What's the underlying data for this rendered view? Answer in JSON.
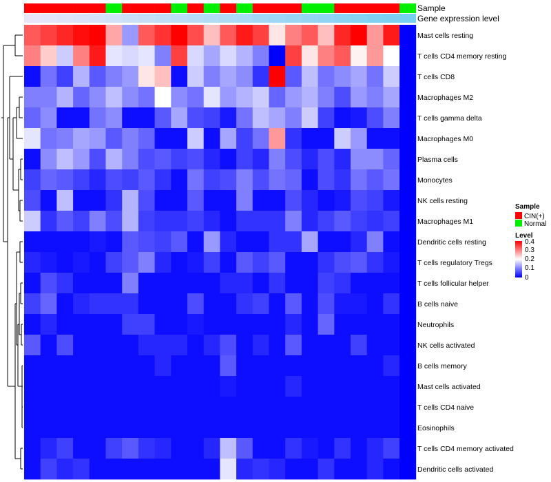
{
  "chart_data": {
    "type": "heatmap",
    "annotation_labels": [
      "Sample",
      "Gene expression level"
    ],
    "sample_groups": [
      "CIN(+)",
      "CIN(+)",
      "CIN(+)",
      "CIN(+)",
      "CIN(+)",
      "Normal",
      "CIN(+)",
      "CIN(+)",
      "CIN(+)",
      "Normal",
      "CIN(+)",
      "Normal",
      "CIN(+)",
      "Normal",
      "CIN(+)",
      "CIN(+)",
      "CIN(+)",
      "Normal",
      "Normal",
      "CIN(+)",
      "CIN(+)",
      "CIN(+)",
      "CIN(+)",
      "Normal"
    ],
    "gene_expression_level": [
      0.02,
      0.06,
      0.1,
      0.14,
      0.18,
      0.22,
      0.26,
      0.3,
      0.34,
      0.38,
      0.42,
      0.46,
      0.5,
      0.54,
      0.58,
      0.62,
      0.66,
      0.7,
      0.74,
      0.78,
      0.82,
      0.86,
      0.9,
      0.94
    ],
    "rows": [
      "Mast cells resting",
      "T cells CD4 memory resting",
      "T cells CD8",
      "Macrophages M2",
      "T cells gamma delta",
      "Macrophages M0",
      "Plasma cells",
      "Monocytes",
      "NK cells resting",
      "Macrophages M1",
      "Dendritic cells resting",
      "T cells regulatory  Tregs",
      "T cells follicular helper",
      "B cells naive",
      "Neutrophils",
      "NK cells activated",
      "B cells memory",
      "Mast cells activated",
      "T cells CD4 naive",
      "Eosinophils",
      "T cells CD4 memory activated",
      "Dendritic cells activated"
    ],
    "values": [
      [
        0.33,
        0.35,
        0.37,
        0.39,
        0.4,
        0.27,
        0.12,
        0.33,
        0.36,
        0.4,
        0.34,
        0.25,
        0.33,
        0.38,
        0.35,
        0.22,
        0.3,
        0.33,
        0.25,
        0.37,
        0.4,
        0.28,
        0.38,
        0.0
      ],
      [
        0.3,
        0.24,
        0.16,
        0.3,
        0.38,
        0.18,
        0.17,
        0.18,
        0.1,
        0.35,
        0.17,
        0.13,
        0.17,
        0.14,
        0.1,
        0.0,
        0.35,
        0.22,
        0.3,
        0.33,
        0.21,
        0.28,
        0.2,
        0.0
      ],
      [
        0.01,
        0.09,
        0.05,
        0.14,
        0.07,
        0.1,
        0.12,
        0.22,
        0.25,
        0.01,
        0.16,
        0.1,
        0.13,
        0.11,
        0.04,
        0.4,
        0.07,
        0.15,
        0.09,
        0.11,
        0.13,
        0.09,
        0.16,
        0.0
      ],
      [
        0.1,
        0.1,
        0.14,
        0.08,
        0.11,
        0.15,
        0.11,
        0.09,
        0.2,
        0.11,
        0.09,
        0.18,
        0.12,
        0.14,
        0.16,
        0.08,
        0.12,
        0.14,
        0.1,
        0.06,
        0.12,
        0.1,
        0.13,
        0.0
      ],
      [
        0.08,
        0.11,
        0.01,
        0.01,
        0.09,
        0.11,
        0.01,
        0.01,
        0.07,
        0.13,
        0.06,
        0.05,
        0.02,
        0.09,
        0.15,
        0.13,
        0.1,
        0.16,
        0.05,
        0.01,
        0.02,
        0.06,
        0.1,
        0.0
      ],
      [
        0.18,
        0.09,
        0.1,
        0.13,
        0.12,
        0.07,
        0.1,
        0.08,
        0.01,
        0.01,
        0.16,
        0.01,
        0.13,
        0.05,
        0.09,
        0.28,
        0.04,
        0.01,
        0.01,
        0.16,
        0.12,
        0.01,
        0.01,
        0.0
      ],
      [
        0.01,
        0.11,
        0.15,
        0.12,
        0.06,
        0.14,
        0.1,
        0.06,
        0.07,
        0.05,
        0.06,
        0.03,
        0.01,
        0.05,
        0.03,
        0.1,
        0.06,
        0.03,
        0.06,
        0.03,
        0.11,
        0.11,
        0.08,
        0.0
      ],
      [
        0.05,
        0.08,
        0.07,
        0.05,
        0.03,
        0.06,
        0.05,
        0.07,
        0.04,
        0.01,
        0.09,
        0.05,
        0.06,
        0.1,
        0.06,
        0.09,
        0.08,
        0.01,
        0.06,
        0.04,
        0.09,
        0.07,
        0.09,
        0.0
      ],
      [
        0.06,
        0.01,
        0.15,
        0.01,
        0.01,
        0.04,
        0.14,
        0.06,
        0.01,
        0.01,
        0.07,
        0.01,
        0.01,
        0.1,
        0.01,
        0.01,
        0.06,
        0.03,
        0.01,
        0.02,
        0.06,
        0.05,
        0.02,
        0.0
      ],
      [
        0.16,
        0.04,
        0.07,
        0.05,
        0.1,
        0.06,
        0.14,
        0.05,
        0.04,
        0.04,
        0.05,
        0.03,
        0.01,
        0.04,
        0.04,
        0.04,
        0.1,
        0.03,
        0.05,
        0.07,
        0.05,
        0.04,
        0.05,
        0.0
      ],
      [
        0.01,
        0.01,
        0.01,
        0.01,
        0.02,
        0.01,
        0.07,
        0.06,
        0.05,
        0.07,
        0.01,
        0.12,
        0.03,
        0.01,
        0.01,
        0.04,
        0.04,
        0.13,
        0.01,
        0.01,
        0.03,
        0.1,
        0.01,
        0.0
      ],
      [
        0.03,
        0.02,
        0.01,
        0.02,
        0.01,
        0.05,
        0.07,
        0.1,
        0.03,
        0.01,
        0.02,
        0.05,
        0.01,
        0.07,
        0.05,
        0.07,
        0.01,
        0.01,
        0.04,
        0.06,
        0.07,
        0.04,
        0.02,
        0.0
      ],
      [
        0.01,
        0.06,
        0.04,
        0.01,
        0.01,
        0.01,
        0.1,
        0.01,
        0.01,
        0.01,
        0.01,
        0.01,
        0.03,
        0.03,
        0.01,
        0.04,
        0.01,
        0.01,
        0.05,
        0.04,
        0.01,
        0.01,
        0.01,
        0.0
      ],
      [
        0.05,
        0.08,
        0.01,
        0.03,
        0.04,
        0.04,
        0.04,
        0.01,
        0.01,
        0.01,
        0.06,
        0.01,
        0.01,
        0.04,
        0.05,
        0.01,
        0.07,
        0.01,
        0.06,
        0.02,
        0.02,
        0.01,
        0.04,
        0.0
      ],
      [
        0.01,
        0.03,
        0.01,
        0.01,
        0.01,
        0.01,
        0.05,
        0.05,
        0.01,
        0.01,
        0.02,
        0.01,
        0.01,
        0.01,
        0.01,
        0.01,
        0.03,
        0.01,
        0.08,
        0.01,
        0.01,
        0.01,
        0.01,
        0.0
      ],
      [
        0.07,
        0.01,
        0.06,
        0.01,
        0.01,
        0.01,
        0.01,
        0.03,
        0.03,
        0.03,
        0.01,
        0.03,
        0.06,
        0.01,
        0.03,
        0.01,
        0.07,
        0.01,
        0.01,
        0.01,
        0.05,
        0.01,
        0.01,
        0.0
      ],
      [
        0.01,
        0.01,
        0.01,
        0.01,
        0.01,
        0.01,
        0.01,
        0.01,
        0.03,
        0.01,
        0.01,
        0.01,
        0.07,
        0.01,
        0.01,
        0.01,
        0.01,
        0.01,
        0.01,
        0.01,
        0.01,
        0.01,
        0.03,
        0.0
      ],
      [
        0.01,
        0.01,
        0.01,
        0.01,
        0.01,
        0.01,
        0.01,
        0.01,
        0.01,
        0.01,
        0.01,
        0.01,
        0.02,
        0.01,
        0.01,
        0.01,
        0.03,
        0.01,
        0.01,
        0.01,
        0.01,
        0.01,
        0.01,
        0.0
      ],
      [
        0.01,
        0.01,
        0.01,
        0.01,
        0.01,
        0.01,
        0.01,
        0.01,
        0.01,
        0.01,
        0.01,
        0.01,
        0.01,
        0.01,
        0.01,
        0.01,
        0.01,
        0.01,
        0.01,
        0.01,
        0.01,
        0.01,
        0.01,
        0.0
      ],
      [
        0.01,
        0.01,
        0.01,
        0.01,
        0.01,
        0.01,
        0.01,
        0.01,
        0.01,
        0.01,
        0.01,
        0.01,
        0.01,
        0.01,
        0.01,
        0.01,
        0.01,
        0.01,
        0.01,
        0.01,
        0.01,
        0.01,
        0.01,
        0.0
      ],
      [
        0.01,
        0.03,
        0.05,
        0.01,
        0.01,
        0.05,
        0.07,
        0.04,
        0.03,
        0.01,
        0.01,
        0.03,
        0.15,
        0.07,
        0.01,
        0.01,
        0.04,
        0.02,
        0.01,
        0.04,
        0.01,
        0.03,
        0.05,
        0.0
      ],
      [
        0.01,
        0.05,
        0.03,
        0.04,
        0.01,
        0.01,
        0.01,
        0.01,
        0.01,
        0.01,
        0.01,
        0.01,
        0.18,
        0.03,
        0.04,
        0.03,
        0.01,
        0.01,
        0.04,
        0.01,
        0.01,
        0.03,
        0.01,
        0.0
      ]
    ],
    "color_scale": {
      "min": 0,
      "mid": 0.2,
      "max": 0.4,
      "low": "#0000ff",
      "midcolor": "#ffffff",
      "high": "#ff0000"
    },
    "legend": {
      "sample_title": "Sample",
      "sample_entries": [
        {
          "label": "CIN(+)",
          "color": "#ff0000"
        },
        {
          "label": "Normal",
          "color": "#00ee00"
        }
      ],
      "level_title": "Level",
      "level_ticks": [
        "0.4",
        "0.3",
        "0.2",
        "0.1",
        "0"
      ]
    }
  }
}
